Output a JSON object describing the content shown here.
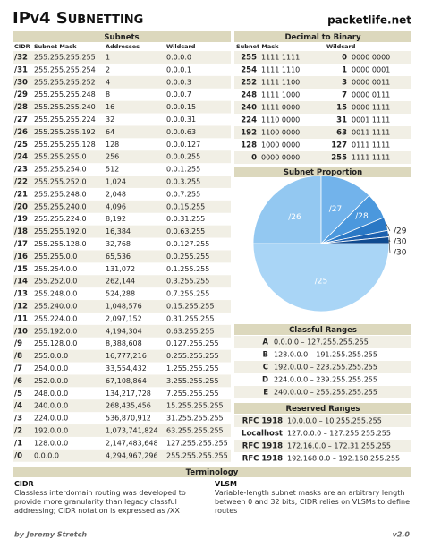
{
  "header": {
    "title": "IPv4 Subnetting",
    "site": "packetlife.net"
  },
  "subnets": {
    "title": "Subnets",
    "columns": [
      "CIDR",
      "Subnet Mask",
      "Addresses",
      "Wildcard"
    ],
    "rows": [
      [
        "/32",
        "255.255.255.255",
        "1",
        "0.0.0.0"
      ],
      [
        "/31",
        "255.255.255.254",
        "2",
        "0.0.0.1"
      ],
      [
        "/30",
        "255.255.255.252",
        "4",
        "0.0.0.3"
      ],
      [
        "/29",
        "255.255.255.248",
        "8",
        "0.0.0.7"
      ],
      [
        "/28",
        "255.255.255.240",
        "16",
        "0.0.0.15"
      ],
      [
        "/27",
        "255.255.255.224",
        "32",
        "0.0.0.31"
      ],
      [
        "/26",
        "255.255.255.192",
        "64",
        "0.0.0.63"
      ],
      [
        "/25",
        "255.255.255.128",
        "128",
        "0.0.0.127"
      ],
      [
        "/24",
        "255.255.255.0",
        "256",
        "0.0.0.255"
      ],
      [
        "/23",
        "255.255.254.0",
        "512",
        "0.0.1.255"
      ],
      [
        "/22",
        "255.255.252.0",
        "1,024",
        "0.0.3.255"
      ],
      [
        "/21",
        "255.255.248.0",
        "2,048",
        "0.0.7.255"
      ],
      [
        "/20",
        "255.255.240.0",
        "4,096",
        "0.0.15.255"
      ],
      [
        "/19",
        "255.255.224.0",
        "8,192",
        "0.0.31.255"
      ],
      [
        "/18",
        "255.255.192.0",
        "16,384",
        "0.0.63.255"
      ],
      [
        "/17",
        "255.255.128.0",
        "32,768",
        "0.0.127.255"
      ],
      [
        "/16",
        "255.255.0.0",
        "65,536",
        "0.0.255.255"
      ],
      [
        "/15",
        "255.254.0.0",
        "131,072",
        "0.1.255.255"
      ],
      [
        "/14",
        "255.252.0.0",
        "262,144",
        "0.3.255.255"
      ],
      [
        "/13",
        "255.248.0.0",
        "524,288",
        "0.7.255.255"
      ],
      [
        "/12",
        "255.240.0.0",
        "1,048,576",
        "0.15.255.255"
      ],
      [
        "/11",
        "255.224.0.0",
        "2,097,152",
        "0.31.255.255"
      ],
      [
        "/10",
        "255.192.0.0",
        "4,194,304",
        "0.63.255.255"
      ],
      [
        "/9",
        "255.128.0.0",
        "8,388,608",
        "0.127.255.255"
      ],
      [
        "/8",
        "255.0.0.0",
        "16,777,216",
        "0.255.255.255"
      ],
      [
        "/7",
        "254.0.0.0",
        "33,554,432",
        "1.255.255.255"
      ],
      [
        "/6",
        "252.0.0.0",
        "67,108,864",
        "3.255.255.255"
      ],
      [
        "/5",
        "248.0.0.0",
        "134,217,728",
        "7.255.255.255"
      ],
      [
        "/4",
        "240.0.0.0",
        "268,435,456",
        "15.255.255.255"
      ],
      [
        "/3",
        "224.0.0.0",
        "536,870,912",
        "31.255.255.255"
      ],
      [
        "/2",
        "192.0.0.0",
        "1,073,741,824",
        "63.255.255.255"
      ],
      [
        "/1",
        "128.0.0.0",
        "2,147,483,648",
        "127.255.255.255"
      ],
      [
        "/0",
        "0.0.0.0",
        "4,294,967,296",
        "255.255.255.255"
      ]
    ]
  },
  "decimal_to_binary": {
    "title": "Decimal to Binary",
    "columns": [
      "Subnet Mask",
      "Wildcard"
    ],
    "rows": [
      [
        "255",
        "1111 1111",
        "0",
        "0000 0000"
      ],
      [
        "254",
        "1111 1110",
        "1",
        "0000 0001"
      ],
      [
        "252",
        "1111 1100",
        "3",
        "0000 0011"
      ],
      [
        "248",
        "1111 1000",
        "7",
        "0000 0111"
      ],
      [
        "240",
        "1111 0000",
        "15",
        "0000 1111"
      ],
      [
        "224",
        "1110 0000",
        "31",
        "0001 1111"
      ],
      [
        "192",
        "1100 0000",
        "63",
        "0011 1111"
      ],
      [
        "128",
        "1000 0000",
        "127",
        "0111 1111"
      ],
      [
        "0",
        "0000 0000",
        "255",
        "1111 1111"
      ]
    ]
  },
  "subnet_proportion": {
    "title": "Subnet Proportion",
    "labels": [
      "/25",
      "/26",
      "/27",
      "/28",
      "/29",
      "/30",
      "/30"
    ]
  },
  "classful_ranges": {
    "title": "Classful Ranges",
    "rows": [
      [
        "A",
        "0.0.0.0 – 127.255.255.255"
      ],
      [
        "B",
        "128.0.0.0 – 191.255.255.255"
      ],
      [
        "C",
        "192.0.0.0 – 223.255.255.255"
      ],
      [
        "D",
        "224.0.0.0 – 239.255.255.255"
      ],
      [
        "E",
        "240.0.0.0 – 255.255.255.255"
      ]
    ]
  },
  "reserved_ranges": {
    "title": "Reserved Ranges",
    "rows": [
      [
        "RFC 1918",
        "10.0.0.0 – 10.255.255.255"
      ],
      [
        "Localhost",
        "127.0.0.0 – 127.255.255.255"
      ],
      [
        "RFC 1918",
        "172.16.0.0 – 172.31.255.255"
      ],
      [
        "RFC 1918",
        "192.168.0.0 – 192.168.255.255"
      ]
    ]
  },
  "terminology": {
    "title": "Terminology",
    "items": [
      {
        "term": "CIDR",
        "text": "Classless interdomain routing was developed to provide more granularity than legacy classful addressing; CIDR notation is expressed as /XX"
      },
      {
        "term": "VLSM",
        "text": "Variable-length subnet masks are an arbitrary length between 0 and 32 bits; CIDR relies on VLSMs to define routes"
      }
    ]
  },
  "footer": {
    "author": "by Jeremy Stretch",
    "version": "v2.0"
  }
}
